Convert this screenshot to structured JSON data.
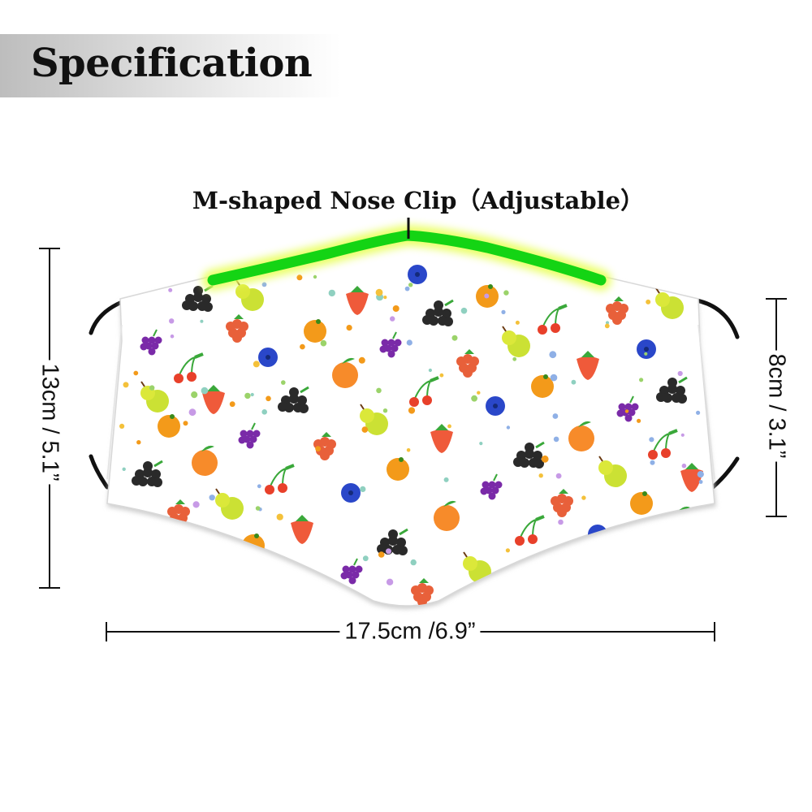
{
  "header": {
    "title": "Specification"
  },
  "callout": {
    "nose_clip_label": "M-shaped Nose Clip（Adjustable）"
  },
  "dimensions": {
    "height": "13cm / 5.1”",
    "side_height": "8cm / 3.1”",
    "width": "17.5cm /6.9”"
  },
  "colors": {
    "nose_clip": "#14d414",
    "nose_clip_glow": "#e8ff5a",
    "mask_fabric": "#ffffff",
    "ear_loop": "#111111"
  },
  "product": {
    "pattern": "fruit-print",
    "item": "face-mask"
  }
}
